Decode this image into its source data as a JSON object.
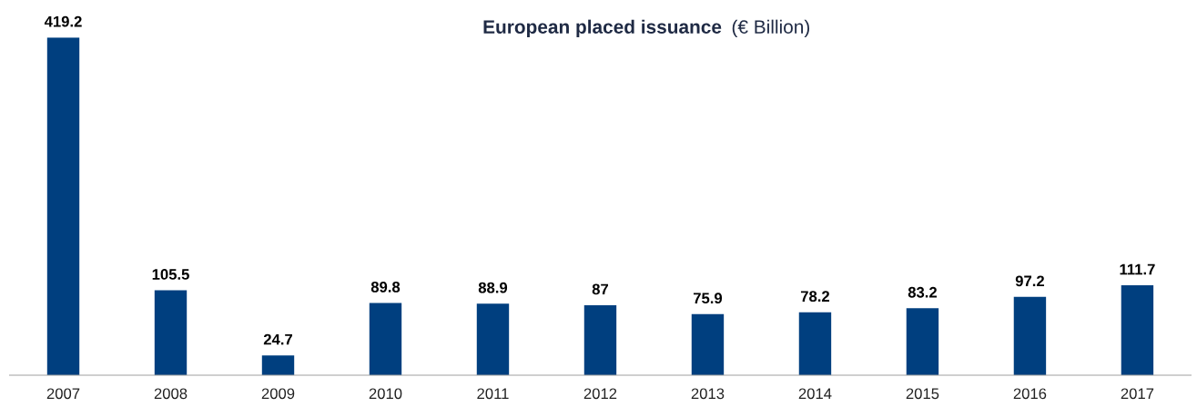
{
  "chart_data": {
    "type": "bar",
    "title": "European placed issuance",
    "subtitle": "(€ Billion)",
    "categories": [
      "2007",
      "2008",
      "2009",
      "2010",
      "2011",
      "2012",
      "2013",
      "2014",
      "2015",
      "2016",
      "2017"
    ],
    "values": [
      419.2,
      105.5,
      24.7,
      89.8,
      88.9,
      87,
      75.9,
      78.2,
      83.2,
      97.2,
      111.7
    ],
    "color": "#003f7f",
    "data_labels": true,
    "grid": false,
    "legend": false,
    "tick_labels": "x"
  }
}
